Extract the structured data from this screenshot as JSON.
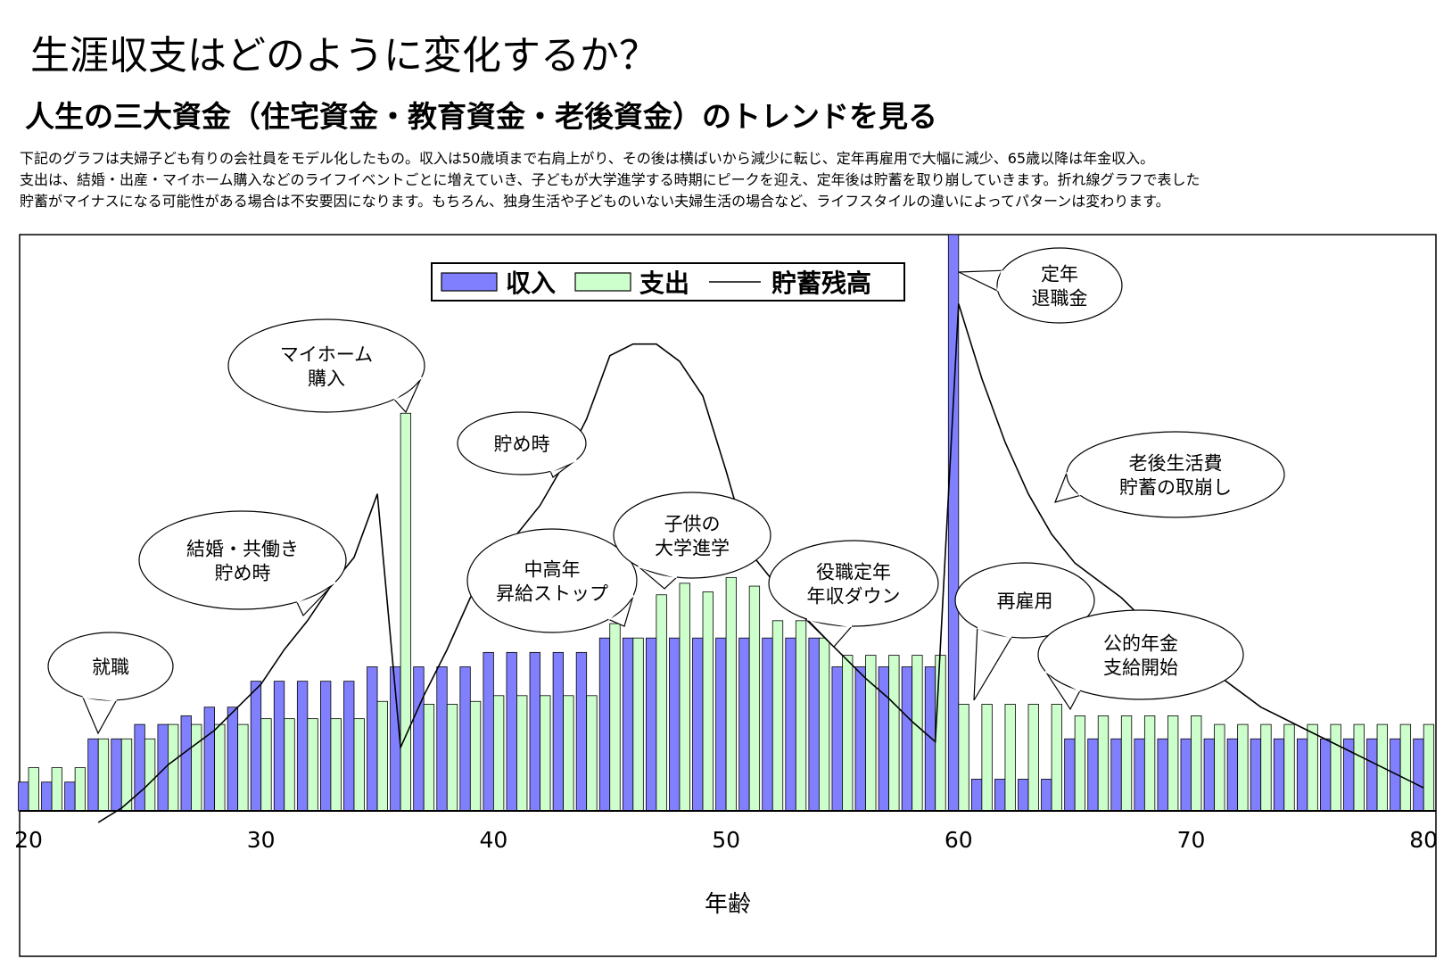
{
  "header": {
    "title": "生涯収支はどのように変化するか？",
    "subtitle": "人生の三大資金（住宅資金・教育資金・老後資金）のトレンドを見る",
    "description": [
      "下記のグラフは夫婦子ども有りの会社員をモデル化したもの。収入は50歳頃まで右肩上がり、その後は横ばいから減少に転じ、定年再雇用で大幅に減少、65歳以降は年金収入。",
      "支出は、結婚・出産・マイホーム購入などのライフイベントごとに増えていき、子どもが大学進学する時期にピークを迎え、定年後は貯蓄を取り崩していきます。折れ線グラフで表した",
      "貯蓄がマイナスになる可能性がある場合は不安要因になります。もちろん、独身生活や子どものいない夫婦生活の場合など、ライフスタイルの違いによってパターンは変わります。"
    ]
  },
  "chart_data": {
    "type": "bar",
    "xlabel": "年齢",
    "ylabel": "",
    "xlim": [
      20,
      80
    ],
    "ylim": [
      0,
      100
    ],
    "xticks": [
      20,
      30,
      40,
      50,
      60,
      70,
      80
    ],
    "grid": false,
    "legend_position": "top-center",
    "legend": [
      {
        "name": "収入",
        "kind": "bar",
        "color": "#8080ff"
      },
      {
        "name": "支出",
        "kind": "bar",
        "color": "#ccffcc"
      },
      {
        "name": "貯蓄残高",
        "kind": "line",
        "color": "#000000"
      }
    ],
    "ages": [
      20,
      21,
      22,
      23,
      24,
      25,
      26,
      27,
      28,
      29,
      30,
      31,
      32,
      33,
      34,
      35,
      36,
      37,
      38,
      39,
      40,
      41,
      42,
      43,
      44,
      45,
      46,
      47,
      48,
      49,
      50,
      51,
      52,
      53,
      54,
      55,
      56,
      57,
      58,
      59,
      60,
      61,
      62,
      63,
      64,
      65,
      66,
      67,
      68,
      69,
      70,
      71,
      72,
      73,
      74,
      75,
      76,
      77,
      78,
      79,
      80
    ],
    "series": [
      {
        "name": "収入",
        "color": "#8080ff",
        "values": [
          5,
          5,
          5,
          12.5,
          12.5,
          15,
          15,
          16.5,
          18,
          18,
          22.5,
          22.5,
          22.5,
          22.5,
          22.5,
          25,
          25,
          25,
          25,
          25,
          27.5,
          27.5,
          27.5,
          27.5,
          27.5,
          30,
          30,
          30,
          30,
          30,
          30,
          30,
          30,
          30,
          30,
          25,
          25,
          25,
          25,
          25,
          100,
          5.5,
          5.5,
          5.5,
          5.5,
          12.5,
          12.5,
          12.5,
          12.5,
          12.5,
          12.5,
          12.5,
          12.5,
          12.5,
          12.5,
          12.5,
          12.5,
          12.5,
          12.5,
          12.5,
          12.5
        ]
      },
      {
        "name": "支出",
        "color": "#ccffcc",
        "values": [
          7.5,
          7.5,
          7.5,
          12.5,
          12.5,
          12.5,
          15,
          15,
          15,
          15,
          16,
          16,
          16,
          16,
          16,
          19,
          69,
          18.5,
          18.5,
          19,
          20,
          20,
          20,
          20,
          20,
          32.5,
          30,
          37.5,
          39.5,
          38,
          40.5,
          39,
          33,
          33,
          30,
          27,
          27,
          27,
          27,
          27,
          18.5,
          18.5,
          18.5,
          18.5,
          18.5,
          16.5,
          16.5,
          16.5,
          16.5,
          16.5,
          16.5,
          15,
          15,
          15,
          15,
          15,
          15,
          15,
          15,
          15,
          15
        ]
      },
      {
        "name": "貯蓄残高",
        "color": "#000000",
        "values": [
          null,
          null,
          null,
          -2,
          0.5,
          4,
          8,
          11,
          14,
          18,
          22,
          28,
          33,
          39,
          44,
          55,
          11,
          20,
          28,
          37,
          43,
          48,
          53,
          60,
          68,
          79,
          81,
          81,
          78,
          72,
          59,
          45,
          40,
          35,
          31,
          27,
          23,
          19.5,
          15.5,
          12,
          88,
          75,
          64,
          55,
          48,
          43,
          40,
          37,
          33,
          30,
          27,
          24,
          21,
          18,
          16,
          14,
          12,
          10,
          8,
          6,
          4
        ]
      }
    ],
    "annotations": [
      {
        "label": "就職",
        "age": 23
      },
      {
        "label": "結婚・共働き\n貯め時",
        "age": 32
      },
      {
        "label": "マイホーム\n購入",
        "age": 36
      },
      {
        "label": "貯め時",
        "age": 43
      },
      {
        "label": "中高年\n昇給ストップ",
        "age": 46
      },
      {
        "label": "子供の\n大学進学",
        "age": 48
      },
      {
        "label": "役職定年\n年収ダウン",
        "age": 55
      },
      {
        "label": "定年\n退職金",
        "age": 60
      },
      {
        "label": "再雇用",
        "age": 61
      },
      {
        "label": "老後生活費\n貯蓄の取崩し",
        "age": 64
      },
      {
        "label": "公的年金\n支給開始",
        "age": 65
      }
    ]
  }
}
